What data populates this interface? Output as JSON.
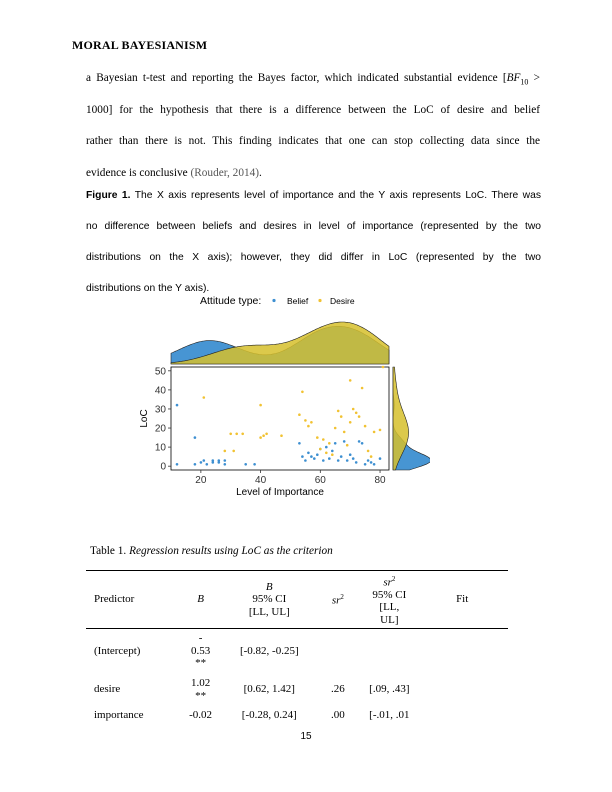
{
  "running_head": "MORAL BAYESIANISM",
  "paragraph": {
    "line1_pre": "a Bayesian t-test and reporting the Bayes factor, which indicated substantial evidence [",
    "bf_symbol": "BF",
    "bf_sub": "10",
    "bf_op": ">",
    "line2_num": "1000",
    "line2_rest": "] for the hypothesis that there is a difference between the LoC of desire and belief",
    "line3": "rather than there is not. This finding indicates that one can stop collecting data since the",
    "line4_pre": "evidence is conclusive ",
    "line4_cite": "(Rouder, 2014)",
    "line4_post": "."
  },
  "caption": {
    "label": "Figure 1.",
    "line1": " The X axis represents level of importance and the Y axis represents LoC. There was",
    "line2": "no difference between beliefs and desires in level of importance (represented by the two",
    "line3": "distributions on the X axis); however, they did differ in LoC (represented by the two",
    "line4": "distributions on the Y axis)."
  },
  "chart_data": {
    "type": "scatter",
    "legend_title": "Attitude type:",
    "legend_position": "top",
    "xlabel": "Level of Importance",
    "ylabel": "LoC",
    "xlim": [
      10,
      83
    ],
    "ylim": [
      -2,
      52
    ],
    "xticks": [
      "20",
      "40",
      "60",
      "80"
    ],
    "yticks": [
      "0",
      "10",
      "20",
      "30",
      "40",
      "50"
    ],
    "marginal_density_top": true,
    "marginal_density_right": true,
    "series": [
      {
        "name": "Belief",
        "color": "#3d8fd1",
        "points": [
          [
            12,
            32
          ],
          [
            12,
            1
          ],
          [
            18,
            15
          ],
          [
            18,
            1
          ],
          [
            20,
            2
          ],
          [
            21,
            3
          ],
          [
            22,
            1
          ],
          [
            24,
            3
          ],
          [
            24,
            2
          ],
          [
            26,
            2
          ],
          [
            26,
            3
          ],
          [
            28,
            3
          ],
          [
            28,
            1
          ],
          [
            35,
            1
          ],
          [
            38,
            1
          ],
          [
            53,
            12
          ],
          [
            54,
            5
          ],
          [
            55,
            3
          ],
          [
            56,
            7
          ],
          [
            57,
            5
          ],
          [
            58,
            4
          ],
          [
            59,
            6
          ],
          [
            60,
            9
          ],
          [
            61,
            3
          ],
          [
            62,
            10
          ],
          [
            63,
            4
          ],
          [
            64,
            8
          ],
          [
            65,
            12
          ],
          [
            66,
            3
          ],
          [
            67,
            5
          ],
          [
            68,
            13
          ],
          [
            69,
            3
          ],
          [
            70,
            6
          ],
          [
            71,
            4
          ],
          [
            72,
            2
          ],
          [
            73,
            13
          ],
          [
            74,
            12
          ],
          [
            75,
            1
          ],
          [
            76,
            3
          ],
          [
            77,
            2
          ],
          [
            78,
            1
          ],
          [
            80,
            4
          ]
        ]
      },
      {
        "name": "Desire",
        "color": "#f1c232",
        "points": [
          [
            21,
            36
          ],
          [
            28,
            8
          ],
          [
            30,
            17
          ],
          [
            31,
            8
          ],
          [
            32,
            17
          ],
          [
            34,
            17
          ],
          [
            40,
            32
          ],
          [
            40,
            15
          ],
          [
            41,
            16
          ],
          [
            42,
            17
          ],
          [
            47,
            16
          ],
          [
            53,
            27
          ],
          [
            54,
            39
          ],
          [
            55,
            24
          ],
          [
            56,
            21
          ],
          [
            57,
            23
          ],
          [
            59,
            15
          ],
          [
            60,
            9
          ],
          [
            61,
            14
          ],
          [
            62,
            7
          ],
          [
            63,
            12
          ],
          [
            64,
            6
          ],
          [
            65,
            20
          ],
          [
            66,
            29
          ],
          [
            67,
            26
          ],
          [
            68,
            18
          ],
          [
            69,
            11
          ],
          [
            70,
            45
          ],
          [
            70,
            23
          ],
          [
            71,
            30
          ],
          [
            72,
            28
          ],
          [
            73,
            26
          ],
          [
            74,
            41
          ],
          [
            75,
            21
          ],
          [
            76,
            8
          ],
          [
            77,
            5
          ],
          [
            78,
            18
          ],
          [
            80,
            19
          ],
          [
            81,
            52
          ]
        ]
      }
    ]
  },
  "table": {
    "title_prefix": "Table 1. ",
    "title_italic": "Regression results using LoC as the criterion",
    "headers": {
      "predictor": "Predictor",
      "b": "B",
      "b_ci_b": "B",
      "b_ci_1": "95% CI",
      "b_ci_2": "[LL, UL]",
      "sr2": "sr",
      "sr2_ci_sr": "sr",
      "sr2_ci_1": "95% CI",
      "sr2_ci_2": "[LL,",
      "sr2_ci_3": "UL]",
      "fit": "Fit",
      "sup": "2"
    },
    "rows": [
      {
        "predictor": "(Intercept)",
        "b_top": "-",
        "b": "0.53",
        "b_sig": "**",
        "b_ci": "[-0.82, -0.25]",
        "sr2": "",
        "sr2_ci": ""
      },
      {
        "predictor": "desire",
        "b_top": "",
        "b": "1.02",
        "b_sig": "**",
        "b_ci": "[0.62, 1.42]",
        "sr2": ".26",
        "sr2_ci": "[.09, .43]"
      },
      {
        "predictor": "importance",
        "b_top": "",
        "b": "-0.02",
        "b_sig": "",
        "b_ci": "[-0.28, 0.24]",
        "sr2": ".00",
        "sr2_ci": "[-.01, .01"
      }
    ]
  },
  "page_number": "15"
}
